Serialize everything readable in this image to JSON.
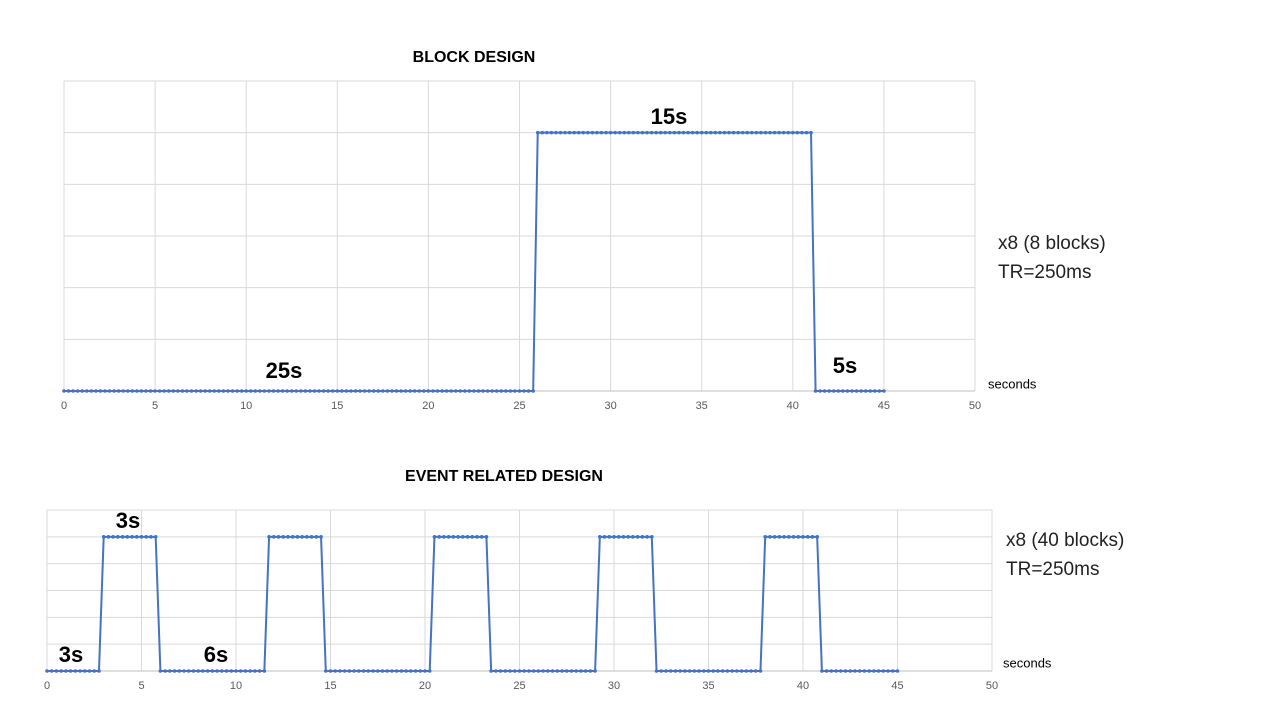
{
  "chart_data": [
    {
      "type": "line",
      "title": "BLOCK DESIGN",
      "xlabel": "seconds",
      "annotations": [
        "25s",
        "15s",
        "5s"
      ],
      "notes": [
        "x8 (8 blocks)",
        "TR=250ms"
      ],
      "xlim": [
        0,
        50
      ],
      "xticks": [
        0,
        5,
        10,
        15,
        20,
        25,
        30,
        35,
        40,
        45,
        50
      ],
      "ylim": [
        0,
        1.2
      ],
      "yticks": [
        0,
        0.2,
        0.4,
        0.6,
        0.8,
        1,
        1.2
      ],
      "ytick_labels": false,
      "grid": true,
      "markers": true,
      "x": [
        0,
        0.25,
        0.5,
        0.75,
        1,
        1.25,
        1.5,
        1.75,
        2,
        2.25,
        2.5,
        2.75,
        3,
        3.25,
        3.5,
        3.75,
        4,
        4.25,
        4.5,
        4.75,
        5,
        5.25,
        5.5,
        5.75,
        6,
        6.25,
        6.5,
        6.75,
        7,
        7.25,
        7.5,
        7.75,
        8,
        8.25,
        8.5,
        8.75,
        9,
        9.25,
        9.5,
        9.75,
        10,
        10.25,
        10.5,
        10.75,
        11,
        11.25,
        11.5,
        11.75,
        12,
        12.25,
        12.5,
        12.75,
        13,
        13.25,
        13.5,
        13.75,
        14,
        14.25,
        14.5,
        14.75,
        15,
        15.25,
        15.5,
        15.75,
        16,
        16.25,
        16.5,
        16.75,
        17,
        17.25,
        17.5,
        17.75,
        18,
        18.25,
        18.5,
        18.75,
        19,
        19.25,
        19.5,
        19.75,
        20,
        20.25,
        20.5,
        20.75,
        21,
        21.25,
        21.5,
        21.75,
        22,
        22.25,
        22.5,
        22.75,
        23,
        23.25,
        23.5,
        23.75,
        24,
        24.25,
        24.5,
        24.75,
        25,
        25.25,
        25.5,
        25.75,
        26,
        26.25,
        26.5,
        26.75,
        27,
        27.25,
        27.5,
        27.75,
        28,
        28.25,
        28.5,
        28.75,
        29,
        29.25,
        29.5,
        29.75,
        30,
        30.25,
        30.5,
        30.75,
        31,
        31.25,
        31.5,
        31.75,
        32,
        32.25,
        32.5,
        32.75,
        33,
        33.25,
        33.5,
        33.75,
        34,
        34.25,
        34.5,
        34.75,
        35,
        35.25,
        35.5,
        35.75,
        36,
        36.25,
        36.5,
        36.75,
        37,
        37.25,
        37.5,
        37.75,
        38,
        38.25,
        38.5,
        38.75,
        39,
        39.25,
        39.5,
        39.75,
        40,
        40.25,
        40.5,
        40.75,
        41,
        41.25,
        41.5,
        41.75,
        42,
        42.25,
        42.5,
        42.75,
        43,
        43.25,
        43.5,
        43.75,
        44,
        44.25,
        44.5,
        44.75,
        45
      ],
      "series": [
        {
          "color": "#4472c4",
          "values": [
            0,
            0,
            0,
            0,
            0,
            0,
            0,
            0,
            0,
            0,
            0,
            0,
            0,
            0,
            0,
            0,
            0,
            0,
            0,
            0,
            0,
            0,
            0,
            0,
            0,
            0,
            0,
            0,
            0,
            0,
            0,
            0,
            0,
            0,
            0,
            0,
            0,
            0,
            0,
            0,
            0,
            0,
            0,
            0,
            0,
            0,
            0,
            0,
            0,
            0,
            0,
            0,
            0,
            0,
            0,
            0,
            0,
            0,
            0,
            0,
            0,
            0,
            0,
            0,
            0,
            0,
            0,
            0,
            0,
            0,
            0,
            0,
            0,
            0,
            0,
            0,
            0,
            0,
            0,
            0,
            0,
            0,
            0,
            0,
            0,
            0,
            0,
            0,
            0,
            0,
            0,
            0,
            0,
            0,
            0,
            0,
            0,
            0,
            0,
            0,
            0,
            0,
            0,
            0,
            1,
            1,
            1,
            1,
            1,
            1,
            1,
            1,
            1,
            1,
            1,
            1,
            1,
            1,
            1,
            1,
            1,
            1,
            1,
            1,
            1,
            1,
            1,
            1,
            1,
            1,
            1,
            1,
            1,
            1,
            1,
            1,
            1,
            1,
            1,
            1,
            1,
            1,
            1,
            1,
            1,
            1,
            1,
            1,
            1,
            1,
            1,
            1,
            1,
            1,
            1,
            1,
            1,
            1,
            1,
            1,
            1,
            1,
            1,
            1,
            1,
            0,
            0,
            0,
            0,
            0,
            0,
            0,
            0,
            0,
            0,
            0,
            0,
            0,
            0,
            0,
            0
          ]
        }
      ]
    },
    {
      "type": "line",
      "title": "EVENT RELATED DESIGN",
      "xlabel": "seconds",
      "annotations": [
        "3s",
        "3s",
        "6s"
      ],
      "notes": [
        "x8 (40 blocks)",
        "TR=250ms"
      ],
      "xlim": [
        0,
        50
      ],
      "xticks": [
        0,
        5,
        10,
        15,
        20,
        25,
        30,
        35,
        40,
        45,
        50
      ],
      "ylim": [
        0,
        1.2
      ],
      "yticks": [
        0,
        0.2,
        0.4,
        0.6,
        0.8,
        1,
        1.2
      ],
      "ytick_labels": false,
      "grid": true,
      "markers": true,
      "x": [
        0,
        0.25,
        0.5,
        0.75,
        1,
        1.25,
        1.5,
        1.75,
        2,
        2.25,
        2.5,
        2.75,
        3,
        3.25,
        3.5,
        3.75,
        4,
        4.25,
        4.5,
        4.75,
        5,
        5.25,
        5.5,
        5.75,
        6,
        6.25,
        6.5,
        6.75,
        7,
        7.25,
        7.5,
        7.75,
        8,
        8.25,
        8.5,
        8.75,
        9,
        9.25,
        9.5,
        9.75,
        10,
        10.25,
        10.5,
        10.75,
        11,
        11.25,
        11.5,
        11.75,
        12,
        12.25,
        12.5,
        12.75,
        13,
        13.25,
        13.5,
        13.75,
        14,
        14.25,
        14.5,
        14.75,
        15,
        15.25,
        15.5,
        15.75,
        16,
        16.25,
        16.5,
        16.75,
        17,
        17.25,
        17.5,
        17.75,
        18,
        18.25,
        18.5,
        18.75,
        19,
        19.25,
        19.5,
        19.75,
        20,
        20.25,
        20.5,
        20.75,
        21,
        21.25,
        21.5,
        21.75,
        22,
        22.25,
        22.5,
        22.75,
        23,
        23.25,
        23.5,
        23.75,
        24,
        24.25,
        24.5,
        24.75,
        25,
        25.25,
        25.5,
        25.75,
        26,
        26.25,
        26.5,
        26.75,
        27,
        27.25,
        27.5,
        27.75,
        28,
        28.25,
        28.5,
        28.75,
        29,
        29.25,
        29.5,
        29.75,
        30,
        30.25,
        30.5,
        30.75,
        31,
        31.25,
        31.5,
        31.75,
        32,
        32.25,
        32.5,
        32.75,
        33,
        33.25,
        33.5,
        33.75,
        34,
        34.25,
        34.5,
        34.75,
        35,
        35.25,
        35.5,
        35.75,
        36,
        36.25,
        36.5,
        36.75,
        37,
        37.25,
        37.5,
        37.75,
        38,
        38.25,
        38.5,
        38.75,
        39,
        39.25,
        39.5,
        39.75,
        40,
        40.25,
        40.5,
        40.75,
        41,
        41.25,
        41.5,
        41.75,
        42,
        42.25,
        42.5,
        42.75,
        43,
        43.25,
        43.5,
        43.75,
        44,
        44.25,
        44.5,
        44.75,
        45
      ],
      "series": [
        {
          "color": "#4472c4",
          "values": [
            0,
            0,
            0,
            0,
            0,
            0,
            0,
            0,
            0,
            0,
            0,
            0,
            1,
            1,
            1,
            1,
            1,
            1,
            1,
            1,
            1,
            1,
            1,
            1,
            0,
            0,
            0,
            0,
            0,
            0,
            0,
            0,
            0,
            0,
            0,
            0,
            0,
            0,
            0,
            0,
            0,
            0,
            0,
            0,
            0,
            0,
            0,
            1,
            1,
            1,
            1,
            1,
            1,
            1,
            1,
            1,
            1,
            1,
            1,
            0,
            0,
            0,
            0,
            0,
            0,
            0,
            0,
            0,
            0,
            0,
            0,
            0,
            0,
            0,
            0,
            0,
            0,
            0,
            0,
            0,
            0,
            0,
            1,
            1,
            1,
            1,
            1,
            1,
            1,
            1,
            1,
            1,
            1,
            1,
            0,
            0,
            0,
            0,
            0,
            0,
            0,
            0,
            0,
            0,
            0,
            0,
            0,
            0,
            0,
            0,
            0,
            0,
            0,
            0,
            0,
            0,
            0,
            1,
            1,
            1,
            1,
            1,
            1,
            1,
            1,
            1,
            1,
            1,
            1,
            0,
            0,
            0,
            0,
            0,
            0,
            0,
            0,
            0,
            0,
            0,
            0,
            0,
            0,
            0,
            0,
            0,
            0,
            0,
            0,
            0,
            0,
            0,
            1,
            1,
            1,
            1,
            1,
            1,
            1,
            1,
            1,
            1,
            1,
            1,
            0,
            0,
            0,
            0,
            0,
            0,
            0,
            0,
            0,
            0,
            0,
            0,
            0,
            0,
            0,
            0,
            0
          ]
        }
      ]
    }
  ]
}
